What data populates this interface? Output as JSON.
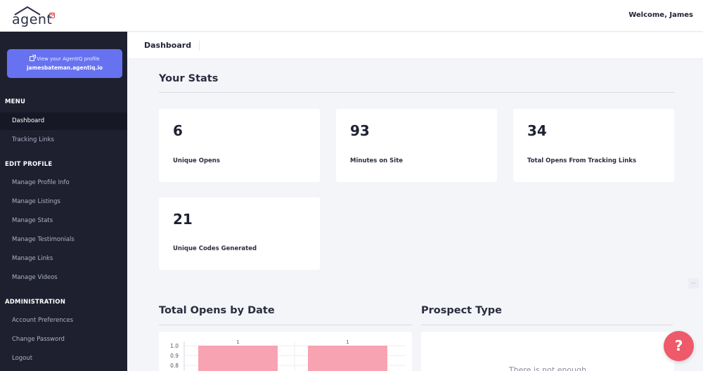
{
  "brand": {
    "logo_text": "agent",
    "logo_badge": "IQ"
  },
  "header": {
    "welcome": "Welcome, James"
  },
  "sidebar": {
    "profile_link": {
      "label": "View your AgentIQ profile",
      "url_text": "jamesbateman.agentiq.io"
    },
    "sections": [
      {
        "title": "MENU",
        "items": [
          "Dashboard",
          "Tracking Links"
        ]
      },
      {
        "title": "EDIT PROFILE",
        "items": [
          "Manage Profile Info",
          "Manage Listings",
          "Manage Stats",
          "Manage Testimonials",
          "Manage Links",
          "Manage Videos"
        ]
      },
      {
        "title": "ADMINISTRATION",
        "items": [
          "Account Preferences",
          "Change Password",
          "Logout"
        ]
      }
    ]
  },
  "breadcrumb": {
    "current": "Dashboard"
  },
  "stats": {
    "heading": "Your Stats",
    "cards": [
      {
        "value": "6",
        "label": "Unique Opens"
      },
      {
        "value": "93",
        "label": "Minutes on Site"
      },
      {
        "value": "34",
        "label": "Total Opens From Tracking Links"
      },
      {
        "value": "21",
        "label": "Unique Codes Generated"
      }
    ]
  },
  "sections": {
    "opens_by_date": "Total Opens by Date",
    "prospect_type": "Prospect Type",
    "prospect_empty": "There is not enough"
  },
  "chart_data": {
    "type": "bar",
    "title": "Total Opens by Date",
    "categories": [
      "",
      ""
    ],
    "values": [
      1,
      1
    ],
    "data_labels": [
      "1",
      "1"
    ],
    "yticks": [
      "1.0",
      "0.9",
      "0.8"
    ],
    "ylim": [
      0,
      1
    ],
    "bar_color": "#f7a3b2"
  },
  "help": {
    "label": "?"
  },
  "mini_widget": {
    "label": "◦◦"
  },
  "colors": {
    "sidebar": "#1e2030",
    "accent": "#6772f1",
    "help": "#ee5a6a"
  }
}
